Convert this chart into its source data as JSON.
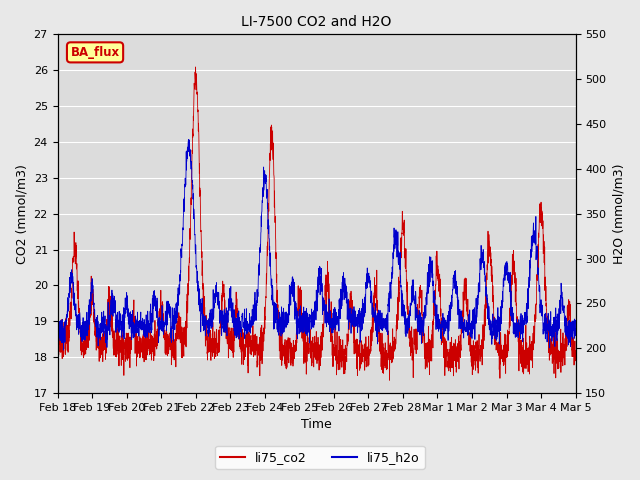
{
  "title": "LI-7500 CO2 and H2O",
  "xlabel": "Time",
  "ylabel_left": "CO2 (mmol/m3)",
  "ylabel_right": "H2O (mmol/m3)",
  "ylim_left": [
    17.0,
    27.0
  ],
  "ylim_right": [
    150,
    550
  ],
  "yticks_left": [
    17.0,
    18.0,
    19.0,
    20.0,
    21.0,
    22.0,
    23.0,
    24.0,
    25.0,
    26.0,
    27.0
  ],
  "yticks_right": [
    150,
    200,
    250,
    300,
    350,
    400,
    450,
    500,
    550
  ],
  "color_co2": "#cc0000",
  "color_h2o": "#0000cc",
  "legend_label_co2": "li75_co2",
  "legend_label_h2o": "li75_h2o",
  "annotation_text": "BA_flux",
  "annotation_bg": "#ffff99",
  "annotation_border": "#cc0000",
  "background_color": "#e8e8e8",
  "plot_bg_color": "#dcdcdc",
  "grid_color": "#ffffff",
  "n_points": 3000,
  "seed": 7,
  "xtick_labels": [
    "Feb 18",
    "Feb 19",
    "Feb 20",
    "Feb 21",
    "Feb 22",
    "Feb 23",
    "Feb 24",
    "Feb 25",
    "Feb 26",
    "Feb 27",
    "Feb 28",
    "Mar 1",
    "Mar 2",
    "Mar 3",
    "Mar 4",
    "Mar 5"
  ]
}
